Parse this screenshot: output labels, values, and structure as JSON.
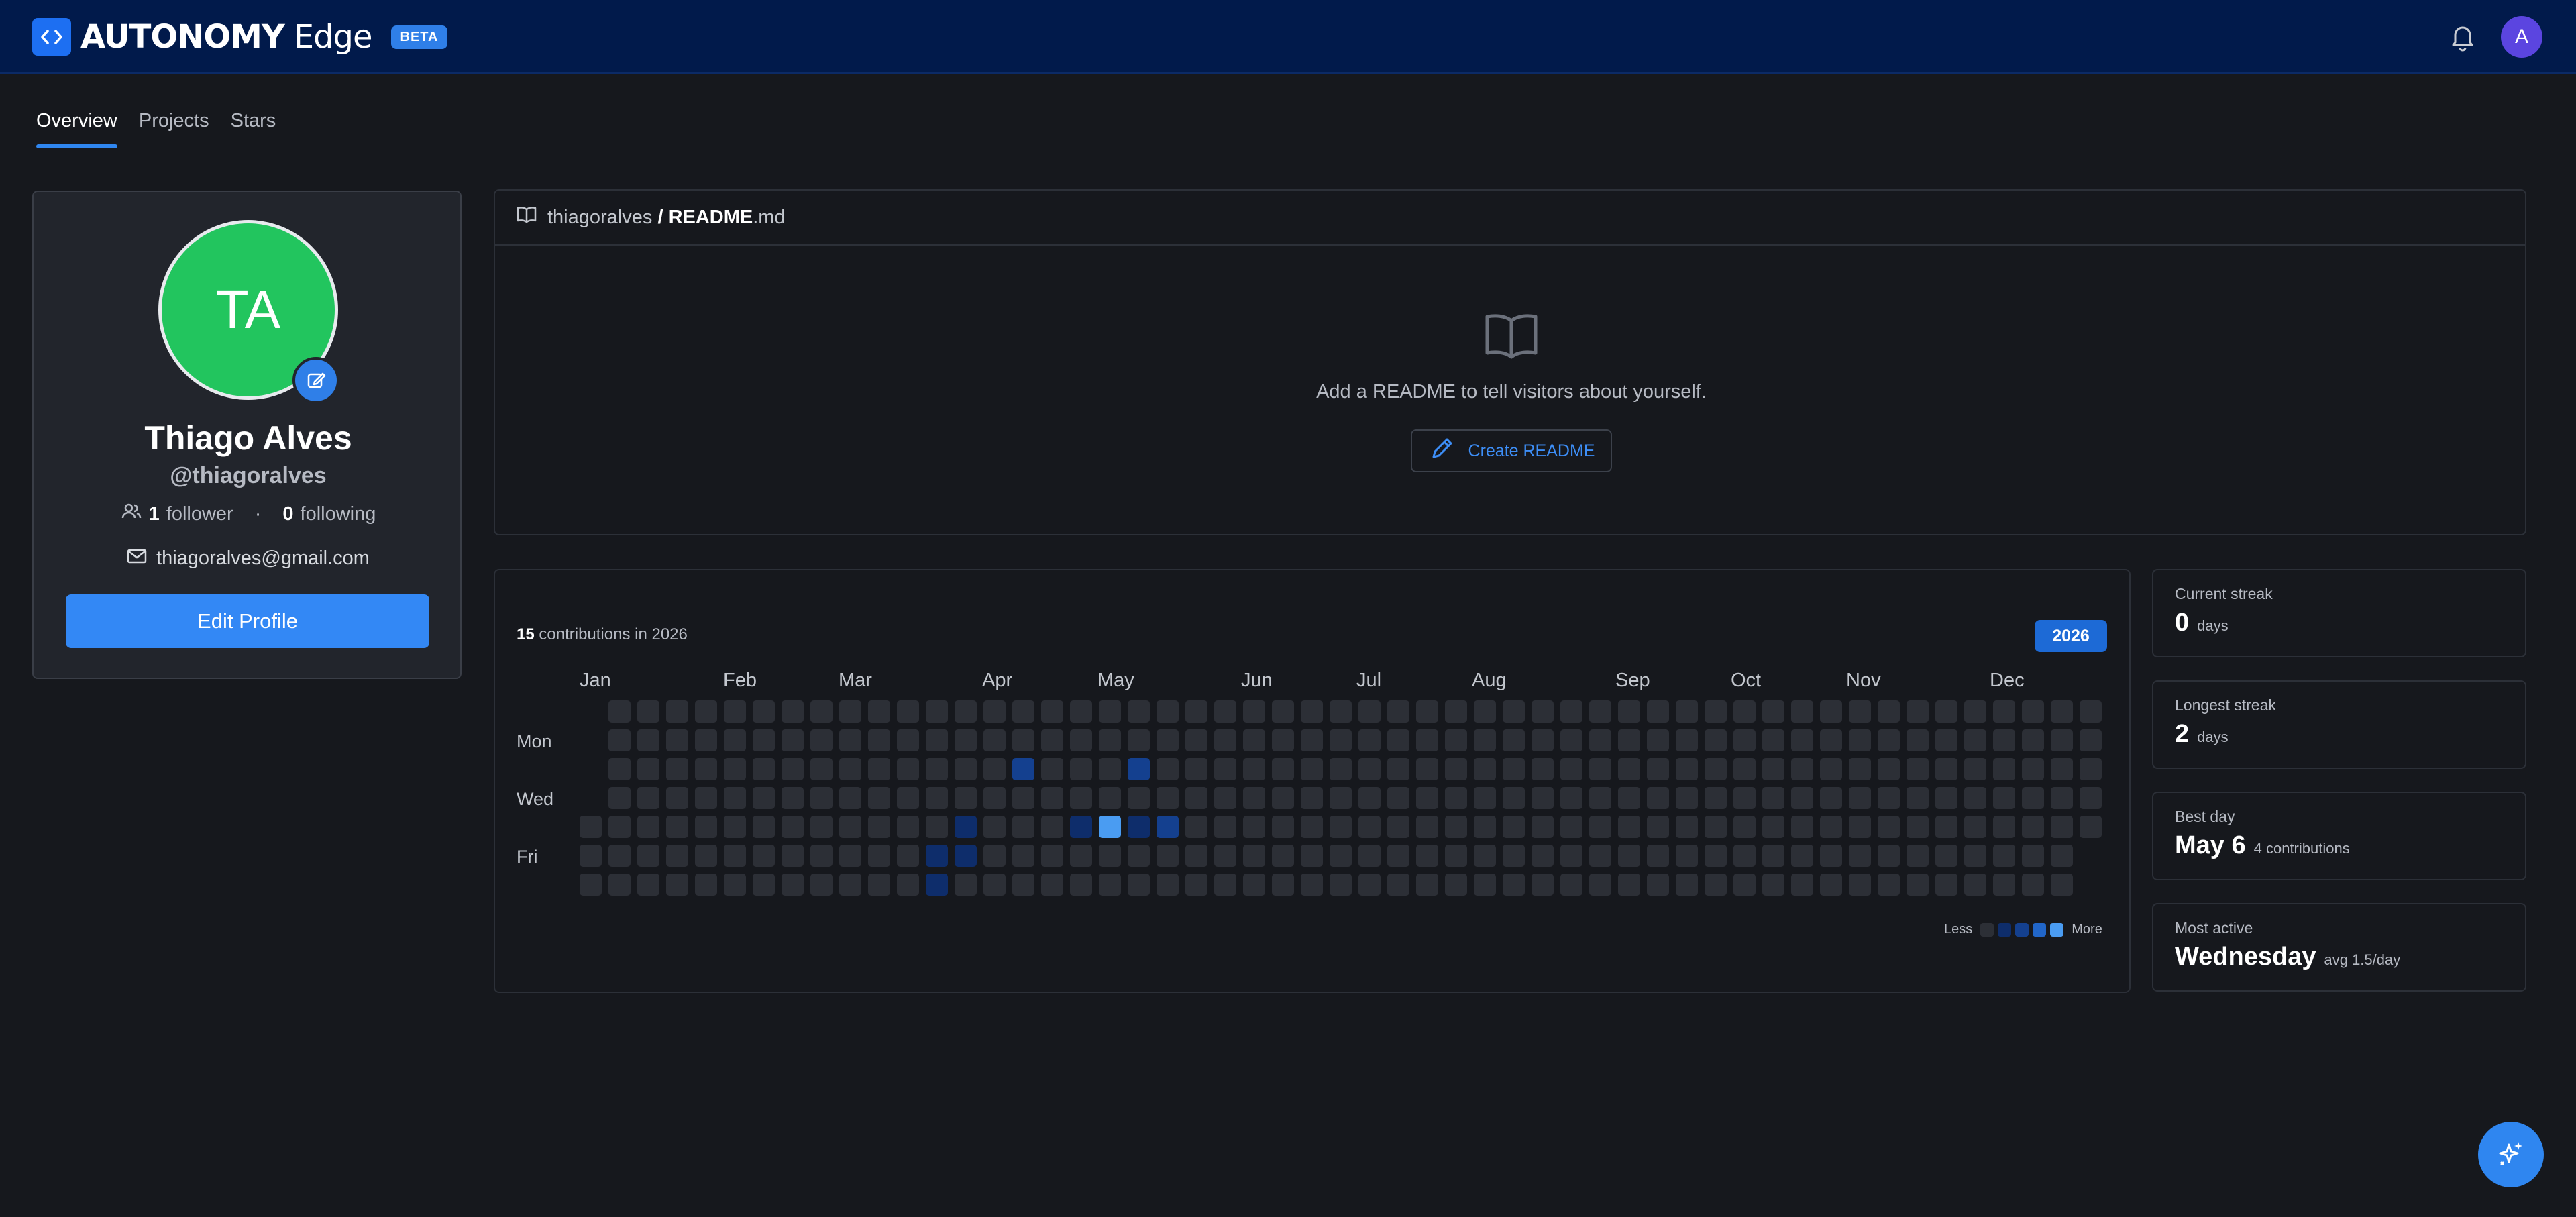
{
  "app": {
    "brand_main": "AUTONOMY",
    "brand_sub": "Edge",
    "badge": "BETA",
    "avatar_initial": "A"
  },
  "tabs": [
    {
      "label": "Overview",
      "active": true
    },
    {
      "label": "Projects"
    },
    {
      "label": "Stars"
    }
  ],
  "profile": {
    "initials": "TA",
    "name": "Thiago Alves",
    "username": "@thiagoralves",
    "followers_count": "1",
    "followers_label": "follower",
    "separator": "·",
    "following_count": "0",
    "following_label": "following",
    "email": "thiagoralves@gmail.com",
    "edit_button": "Edit Profile"
  },
  "readme": {
    "owner": "thiagoralves",
    "slash": "/",
    "file_bold": "README",
    "file_ext": ".md",
    "message": "Add a README to tell visitors about yourself.",
    "create_button": "Create README"
  },
  "contributions": {
    "count": "15",
    "label": "contributions in 2026",
    "year": "2026",
    "months": [
      "Jan",
      "Feb",
      "Mar",
      "Apr",
      "May",
      "Jun",
      "Jul",
      "Aug",
      "Sep",
      "Oct",
      "Nov",
      "Dec"
    ],
    "days": [
      "Mon",
      "Wed",
      "Fri"
    ],
    "legend_less": "Less",
    "legend_more": "More",
    "levels": [
      "#2c2f36",
      "#0e2d6b",
      "#14408f",
      "#2166c9",
      "#4a9cf2"
    ],
    "active_cells": [
      {
        "week": 13,
        "day": 4,
        "level": 1
      },
      {
        "week": 12,
        "day": 5,
        "level": 1
      },
      {
        "week": 13,
        "day": 5,
        "level": 1
      },
      {
        "week": 12,
        "day": 6,
        "level": 1
      },
      {
        "week": 15,
        "day": 2,
        "level": 2
      },
      {
        "week": 19,
        "day": 2,
        "level": 2
      },
      {
        "week": 17,
        "day": 4,
        "level": 1
      },
      {
        "week": 18,
        "day": 4,
        "level": 4
      },
      {
        "week": 19,
        "day": 4,
        "level": 1
      },
      {
        "week": 20,
        "day": 4,
        "level": 2
      }
    ]
  },
  "stats": [
    {
      "label": "Current streak",
      "value": "0",
      "unit": "days"
    },
    {
      "label": "Longest streak",
      "value": "2",
      "unit": "days"
    },
    {
      "label": "Best day",
      "value": "May 6",
      "unit": "4 contributions"
    },
    {
      "label": "Most active",
      "value": "Wednesday",
      "unit": "avg 1.5/day"
    }
  ],
  "icons": {
    "logo": "code-icon",
    "bell": "bell-icon",
    "edit_avatar": "edit-icon",
    "followers": "users-icon",
    "email": "mail-icon",
    "book": "book-icon",
    "pencil": "pencil-icon",
    "fab": "sparkles-icon"
  }
}
